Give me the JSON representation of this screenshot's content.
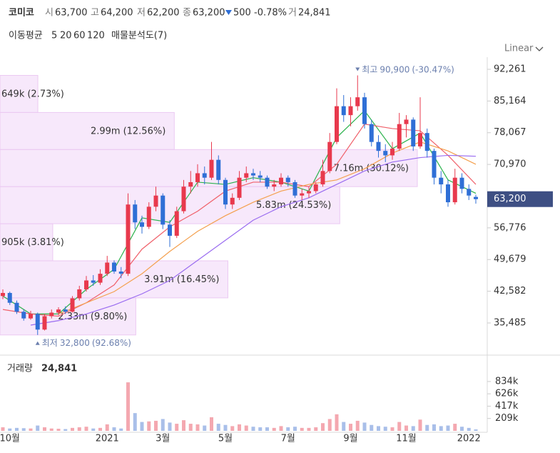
{
  "chart_data": {
    "type": "candlestick",
    "title": "코미코",
    "quote": [
      {
        "label": "시",
        "value": 63700,
        "value_label": "63,700"
      },
      {
        "label": "고",
        "value": 64200,
        "value_label": "64,200"
      },
      {
        "label": "저",
        "value": 62200,
        "value_label": "62,200"
      },
      {
        "label": "종",
        "value": 63200,
        "value_label": "63,200"
      }
    ],
    "change": {
      "value": 500,
      "direction": "down",
      "percent": -0.78,
      "percent_label": "-0.78%",
      "color": "#2f6fd6"
    },
    "volume_label": "거",
    "volume": 24841,
    "volume_value_label": "24,841",
    "ma_title": "이동평균",
    "profile_title": "매물분석도(7)",
    "scale_label": "Linear",
    "up_color": "#e8394d",
    "down_color": "#2f6fd6",
    "volume_up_color": "#f4a8b0",
    "volume_down_color": "#a9bfe9",
    "categories": [
      null,
      "10월",
      null,
      null,
      null,
      null,
      null,
      null,
      null,
      null,
      null,
      null,
      null,
      null,
      null,
      "2021",
      null,
      null,
      null,
      null,
      null,
      null,
      null,
      "3월",
      null,
      null,
      null,
      null,
      null,
      null,
      null,
      null,
      "5월",
      null,
      null,
      null,
      null,
      null,
      null,
      null,
      null,
      "7월",
      null,
      null,
      null,
      null,
      null,
      null,
      null,
      null,
      "9월",
      null,
      null,
      null,
      null,
      null,
      null,
      null,
      "11월",
      null,
      null,
      null,
      null,
      null,
      null,
      null,
      null,
      "2022",
      null
    ],
    "ohlc": [
      [
        41500,
        43000,
        40800,
        42200
      ],
      [
        42200,
        42500,
        39500,
        40000
      ],
      [
        40000,
        40500,
        37500,
        38000
      ],
      [
        38000,
        38500,
        36000,
        36500
      ],
      [
        36500,
        38200,
        36200,
        37500
      ],
      [
        37500,
        37800,
        32800,
        34000
      ],
      [
        34000,
        37500,
        33800,
        37000
      ],
      [
        37000,
        38500,
        36500,
        37800
      ],
      [
        37800,
        39000,
        37200,
        38500
      ],
      [
        38500,
        39200,
        37500,
        38000
      ],
      [
        38000,
        41500,
        37800,
        41000
      ],
      [
        41000,
        43800,
        40500,
        43000
      ],
      [
        43000,
        46000,
        42500,
        45000
      ],
      [
        45000,
        46200,
        43800,
        44500
      ],
      [
        44500,
        47500,
        44000,
        46500
      ],
      [
        46500,
        50500,
        46000,
        49000
      ],
      [
        49000,
        49500,
        46500,
        47000
      ],
      [
        47000,
        48000,
        45500,
        46500
      ],
      [
        46500,
        64500,
        46000,
        62000
      ],
      [
        62000,
        63000,
        56500,
        58000
      ],
      [
        58000,
        59500,
        55500,
        57000
      ],
      [
        57000,
        62500,
        56500,
        61500
      ],
      [
        61500,
        66000,
        60500,
        64000
      ],
      [
        64000,
        64500,
        56500,
        57500
      ],
      [
        57500,
        58500,
        52500,
        55000
      ],
      [
        55000,
        61500,
        54500,
        60500
      ],
      [
        60500,
        67500,
        60000,
        66000
      ],
      [
        66000,
        69500,
        64500,
        67000
      ],
      [
        67000,
        71000,
        66000,
        69000
      ],
      [
        69000,
        70500,
        66500,
        68000
      ],
      [
        68000,
        76000,
        67500,
        72000
      ],
      [
        72000,
        73000,
        66500,
        67500
      ],
      [
        67500,
        68000,
        61000,
        62000
      ],
      [
        62000,
        64500,
        61000,
        63500
      ],
      [
        63500,
        69500,
        63000,
        68000
      ],
      [
        68000,
        70500,
        67000,
        69000
      ],
      [
        69000,
        70000,
        67500,
        68500
      ],
      [
        68500,
        69500,
        67000,
        68000
      ],
      [
        68000,
        68500,
        65500,
        66000
      ],
      [
        66000,
        67500,
        65000,
        66500
      ],
      [
        66500,
        69000,
        66000,
        68000
      ],
      [
        68000,
        68500,
        66000,
        67000
      ],
      [
        67000,
        67500,
        63500,
        64000
      ],
      [
        64000,
        65500,
        63000,
        64500
      ],
      [
        64500,
        66000,
        63500,
        65000
      ],
      [
        65000,
        67000,
        64500,
        66500
      ],
      [
        66500,
        72000,
        66000,
        69500
      ],
      [
        69500,
        78000,
        69000,
        76000
      ],
      [
        76000,
        88000,
        75500,
        84000
      ],
      [
        84000,
        86500,
        80500,
        82000
      ],
      [
        82000,
        86000,
        79500,
        84000
      ],
      [
        84000,
        90900,
        83000,
        86000
      ],
      [
        86000,
        87000,
        79000,
        80000
      ],
      [
        80000,
        81000,
        75000,
        76000
      ],
      [
        76000,
        77500,
        72500,
        74000
      ],
      [
        74000,
        75500,
        71500,
        73000
      ],
      [
        73000,
        76000,
        72000,
        74500
      ],
      [
        74500,
        82500,
        74000,
        80000
      ],
      [
        80000,
        82000,
        77000,
        81000
      ],
      [
        81000,
        81500,
        74000,
        75000
      ],
      [
        75000,
        86000,
        74500,
        78000
      ],
      [
        78000,
        79000,
        72500,
        74000
      ],
      [
        74000,
        74500,
        66500,
        68000
      ],
      [
        68000,
        69500,
        64500,
        66500
      ],
      [
        66500,
        67500,
        61500,
        62500
      ],
      [
        62500,
        70000,
        62000,
        68000
      ],
      [
        68000,
        69000,
        64500,
        65500
      ],
      [
        65500,
        66500,
        63000,
        64000
      ],
      [
        63700,
        64200,
        62200,
        63200
      ]
    ],
    "volumes": [
      60000,
      40000,
      50000,
      45000,
      40000,
      90000,
      60000,
      40000,
      35000,
      30000,
      50000,
      60000,
      70000,
      40000,
      50000,
      110000,
      60000,
      40000,
      820000,
      300000,
      150000,
      160000,
      170000,
      200000,
      140000,
      120000,
      180000,
      120000,
      110000,
      90000,
      230000,
      120000,
      100000,
      80000,
      110000,
      90000,
      70000,
      60000,
      60000,
      50000,
      80000,
      60000,
      70000,
      50000,
      50000,
      60000,
      130000,
      200000,
      280000,
      150000,
      120000,
      170000,
      140000,
      100000,
      80000,
      70000,
      60000,
      150000,
      90000,
      80000,
      190000,
      100000,
      110000,
      80000,
      90000,
      120000,
      70000,
      50000,
      24841
    ],
    "ma": [
      {
        "name": "5",
        "color": "#2bb24c",
        "x": [
          0,
          4,
          8,
          12,
          16,
          20,
          24,
          28,
          32,
          36,
          40,
          44,
          48,
          52,
          56,
          60,
          64,
          68
        ],
        "values": [
          41500,
          37500,
          37500,
          43000,
          47500,
          59000,
          58000,
          67000,
          66500,
          68000,
          67000,
          65000,
          77000,
          83000,
          74500,
          78000,
          67500,
          64500
        ]
      },
      {
        "name": "20",
        "color": "#f0606a",
        "x": [
          0,
          4,
          8,
          12,
          16,
          20,
          24,
          28,
          32,
          36,
          40,
          44,
          48,
          52,
          56,
          60,
          64,
          68
        ],
        "values": [
          38500,
          37500,
          37000,
          40000,
          44000,
          52000,
          57000,
          60500,
          65000,
          67000,
          67000,
          66000,
          71000,
          80000,
          79000,
          78500,
          73000,
          66500
        ]
      },
      {
        "name": "60",
        "color": "#f4a04e",
        "x": [
          8,
          12,
          16,
          20,
          24,
          28,
          32,
          36,
          40,
          44,
          48,
          52,
          56,
          60,
          64,
          68
        ],
        "values": [
          37500,
          40000,
          42500,
          46500,
          51500,
          56000,
          59500,
          62500,
          65000,
          66500,
          67500,
          70000,
          73500,
          76000,
          74000,
          71000
        ]
      },
      {
        "name": "120",
        "color": "#9a6cf0",
        "x": [
          4,
          8,
          12,
          16,
          20,
          24,
          28,
          32,
          36,
          40,
          44,
          48,
          52,
          56,
          60,
          64,
          68
        ],
        "values": [
          35000,
          36000,
          37500,
          39500,
          42000,
          45000,
          49500,
          54000,
          58500,
          61500,
          63500,
          66500,
          69500,
          71500,
          72500,
          73000,
          72800
        ]
      }
    ],
    "volume_profile": {
      "edges": [
        90900,
        82600,
        74300,
        66000,
        57700,
        49400,
        41100,
        32800
      ],
      "volumes": [
        649000,
        2990000,
        7160000,
        5830000,
        905000,
        3910000,
        2330000
      ],
      "value_labels": [
        "649k",
        "2.99m",
        "7.16m",
        "5.83m",
        "905k",
        "3.91m",
        "2.33m"
      ],
      "percents": [
        2.73,
        12.56,
        30.12,
        24.53,
        3.81,
        16.45,
        9.8
      ],
      "percent_labels": [
        "(2.73%)",
        "(12.56%)",
        "(30.12%)",
        "(24.53%)",
        "(3.81%)",
        "(16.45%)",
        "(9.80%)"
      ]
    },
    "high": {
      "label": "최고",
      "value": 90900,
      "value_label": "90,900",
      "change_label": "(-30.47%)",
      "index": 51
    },
    "low": {
      "label": "최저",
      "value": 32800,
      "value_label": "32,800",
      "change_label": "(92.68%)",
      "index": 5
    },
    "current": {
      "value": 63200,
      "label": "63,200",
      "color": "#3e4f83"
    },
    "ylim": [
      29407,
      94180
    ],
    "yticks": [
      {
        "value": 35485,
        "label": "35,485"
      },
      {
        "value": 42582,
        "label": "42,582"
      },
      {
        "value": 49679,
        "label": "49,679"
      },
      {
        "value": 56776,
        "label": "56,776"
      },
      {
        "value": 70970,
        "label": "70,970"
      },
      {
        "value": 78067,
        "label": "78,067"
      },
      {
        "value": 85164,
        "label": "85,164"
      },
      {
        "value": 92261,
        "label": "92,261"
      }
    ],
    "volume_title": "거래량",
    "volume_ylim": [
      0,
      1244000
    ],
    "volume_yticks": [
      {
        "value": 209000,
        "label": "209k"
      },
      {
        "value": 417000,
        "label": "417k"
      },
      {
        "value": 626000,
        "label": "626k"
      },
      {
        "value": 834000,
        "label": "834k"
      }
    ]
  }
}
